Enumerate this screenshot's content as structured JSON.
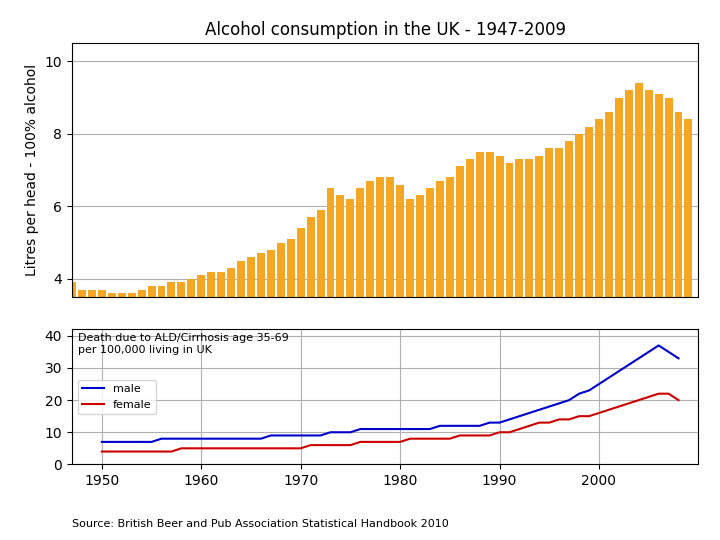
{
  "chart_data": [
    {
      "type": "bar",
      "title": "Alcohol consumption in the UK - 1947-2009",
      "y_label": "Litres per head - 100% alcohol",
      "x": [
        1947,
        1948,
        1949,
        1950,
        1951,
        1952,
        1953,
        1954,
        1955,
        1956,
        1957,
        1958,
        1959,
        1960,
        1961,
        1962,
        1963,
        1964,
        1965,
        1966,
        1967,
        1968,
        1969,
        1970,
        1971,
        1972,
        1973,
        1974,
        1975,
        1976,
        1977,
        1978,
        1979,
        1980,
        1981,
        1982,
        1983,
        1984,
        1985,
        1986,
        1987,
        1988,
        1989,
        1990,
        1991,
        1992,
        1993,
        1994,
        1995,
        1996,
        1997,
        1998,
        1999,
        2000,
        2001,
        2002,
        2003,
        2004,
        2005,
        2006,
        2007,
        2008,
        2009
      ],
      "values": [
        3.9,
        3.7,
        3.7,
        3.7,
        3.6,
        3.6,
        3.6,
        3.7,
        3.8,
        3.8,
        3.9,
        3.9,
        4.0,
        4.1,
        4.2,
        4.2,
        4.3,
        4.5,
        4.6,
        4.7,
        4.8,
        5.0,
        5.1,
        5.4,
        5.7,
        5.9,
        6.5,
        6.3,
        6.2,
        6.5,
        6.7,
        6.8,
        6.8,
        6.6,
        6.2,
        6.3,
        6.5,
        6.7,
        6.8,
        7.1,
        7.3,
        7.5,
        7.5,
        7.4,
        7.2,
        7.3,
        7.3,
        7.4,
        7.6,
        7.6,
        7.8,
        8.0,
        8.2,
        8.4,
        8.6,
        9.0,
        9.2,
        9.4,
        9.2,
        9.1,
        9.0,
        8.6,
        8.4
      ],
      "color": "#F5A623",
      "xlim": [
        1947,
        2010
      ],
      "ylim": [
        3.5,
        10.5
      ],
      "yticks": [
        4,
        6,
        8,
        10
      ],
      "tick_labels": "y",
      "grid": true
    },
    {
      "type": "line",
      "annotation": "Death due to ALD/Cirrhosis age 35-69\nper 100,000 living in UK",
      "source": "Source: British Beer and Pub Association Statistical Handbook 2010",
      "x": [
        1950,
        1951,
        1952,
        1953,
        1954,
        1955,
        1956,
        1957,
        1958,
        1959,
        1960,
        1961,
        1962,
        1963,
        1964,
        1965,
        1966,
        1967,
        1968,
        1969,
        1970,
        1971,
        1972,
        1973,
        1974,
        1975,
        1976,
        1977,
        1978,
        1979,
        1980,
        1981,
        1982,
        1983,
        1984,
        1985,
        1986,
        1987,
        1988,
        1989,
        1990,
        1991,
        1992,
        1993,
        1994,
        1995,
        1996,
        1997,
        1998,
        1999,
        2000,
        2001,
        2002,
        2003,
        2004,
        2005,
        2006,
        2007,
        2008
      ],
      "series": [
        {
          "name": "male",
          "color": "#0000CC",
          "values": [
            7,
            7,
            7,
            7,
            7,
            7,
            8,
            8,
            8,
            8,
            8,
            8,
            8,
            8,
            8,
            8,
            8,
            9,
            9,
            9,
            9,
            9,
            9,
            10,
            10,
            10,
            11,
            11,
            11,
            11,
            11,
            11,
            11,
            11,
            12,
            12,
            12,
            12,
            12,
            13,
            13,
            14,
            15,
            16,
            17,
            18,
            19,
            20,
            22,
            23,
            25,
            27,
            29,
            31,
            33,
            35,
            37,
            35,
            33
          ]
        },
        {
          "name": "female",
          "color": "#CC0000",
          "values": [
            4,
            4,
            4,
            4,
            4,
            4,
            4,
            4,
            5,
            5,
            5,
            5,
            5,
            5,
            5,
            5,
            5,
            5,
            5,
            5,
            5,
            6,
            6,
            6,
            6,
            6,
            7,
            7,
            7,
            7,
            7,
            8,
            8,
            8,
            8,
            8,
            9,
            9,
            9,
            9,
            10,
            10,
            11,
            12,
            13,
            13,
            14,
            14,
            15,
            15,
            16,
            17,
            18,
            19,
            20,
            21,
            22,
            22,
            20
          ]
        }
      ],
      "xlim": [
        1947,
        2010
      ],
      "xticks": [
        1950,
        1960,
        1970,
        1980,
        1990,
        2000
      ],
      "ylim": [
        0,
        42
      ],
      "yticks": [
        0,
        10,
        20,
        30,
        40
      ],
      "legend": "center left",
      "grid": true
    }
  ]
}
